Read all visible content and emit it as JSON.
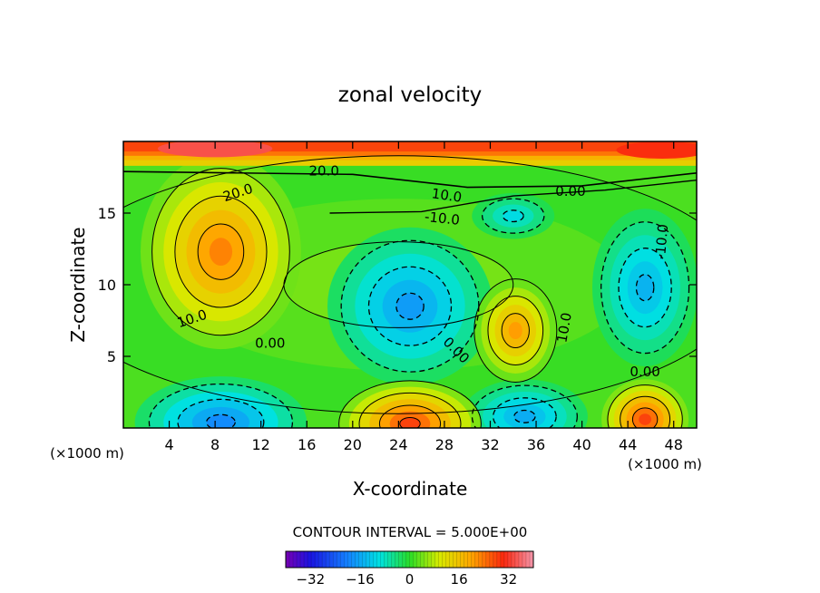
{
  "chart_data": {
    "type": "heatmap",
    "title": "zonal velocity",
    "xlabel": "X-coordinate",
    "ylabel": "Z-coordinate",
    "x_unit_left": "(×1000 m)",
    "x_unit_right": "(×1000 m)",
    "xlim": [
      0,
      50
    ],
    "ylim": [
      0,
      20
    ],
    "xticks": [
      4,
      8,
      12,
      16,
      20,
      24,
      28,
      32,
      36,
      40,
      44,
      48
    ],
    "yticks": [
      5,
      10,
      15
    ],
    "contour_interval_text": "CONTOUR INTERVAL = 5.000E+00",
    "colorbar": {
      "range": [
        -40,
        40
      ],
      "ticks": [
        -32,
        -16,
        0,
        16,
        32
      ]
    },
    "contour_labels": [
      {
        "text": "20.0",
        "x": 17.5,
        "z": 17.9,
        "angle": 0
      },
      {
        "text": "20.0",
        "x": 10.0,
        "z": 16.4,
        "angle": 18
      },
      {
        "text": "10.0",
        "x": 28.2,
        "z": 16.2,
        "angle": -8
      },
      {
        "text": "0.00",
        "x": 39.0,
        "z": 16.5,
        "angle": 0
      },
      {
        "text": "-10.0",
        "x": 27.8,
        "z": 14.6,
        "angle": -6
      },
      {
        "text": "-10.0",
        "x": 47.0,
        "z": 13.0,
        "angle": 85
      },
      {
        "text": "10.0",
        "x": 6.0,
        "z": 7.6,
        "angle": 18
      },
      {
        "text": "0.00",
        "x": 12.8,
        "z": 5.9,
        "angle": 0
      },
      {
        "text": "0.00",
        "x": 29.0,
        "z": 5.4,
        "angle": -45
      },
      {
        "text": "10.0",
        "x": 38.5,
        "z": 7.0,
        "angle": 80
      },
      {
        "text": "0.00",
        "x": 45.5,
        "z": 3.9,
        "angle": 0
      }
    ],
    "features": [
      {
        "name": "upper-jet",
        "x": 25,
        "z": 19.4,
        "value": 28
      },
      {
        "name": "upper-left-core",
        "x": 8,
        "z": 19.5,
        "value": 34
      },
      {
        "name": "positive-eddy",
        "x": 8.5,
        "z": 12.3,
        "value": 26
      },
      {
        "name": "positive-eddy",
        "x": 34.2,
        "z": 6.8,
        "value": 24
      },
      {
        "name": "negative-eddy",
        "x": 25,
        "z": 8.5,
        "value": -20
      },
      {
        "name": "negative-eddy",
        "x": 45.5,
        "z": 9.8,
        "value": -17
      },
      {
        "name": "negative-eddy",
        "x": 34,
        "z": 14.8,
        "value": -13
      },
      {
        "name": "negative-surface",
        "x": 8.5,
        "z": 0.4,
        "value": -22
      },
      {
        "name": "negative-surface",
        "x": 35,
        "z": 0.8,
        "value": -18
      },
      {
        "name": "positive-surface",
        "x": 25,
        "z": 0.3,
        "value": 32
      },
      {
        "name": "positive-surface",
        "x": 45.5,
        "z": 0.6,
        "value": 32
      }
    ]
  }
}
